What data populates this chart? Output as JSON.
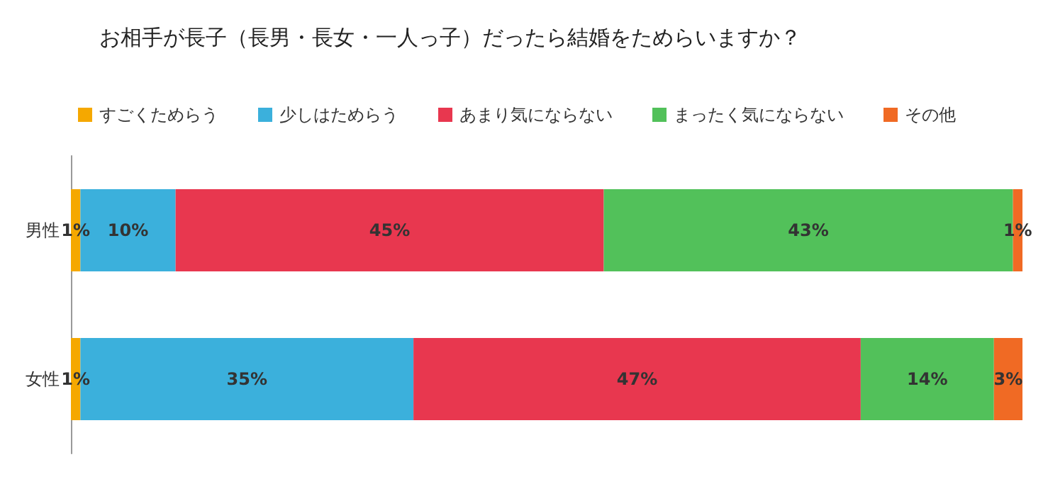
{
  "chart_data": {
    "type": "bar",
    "title": "お相手が長子（長男・長女・一人っ子）だったら結婚をためらいますか？",
    "orientation": "horizontal",
    "stacked": true,
    "categories": [
      "男性",
      "女性"
    ],
    "tick_labels": "y",
    "grid": false,
    "legend": "top",
    "series": [
      {
        "name": "すごくためらう",
        "color": "#f5a800",
        "values": [
          1,
          1
        ],
        "value_labels": [
          "1%",
          "1%"
        ]
      },
      {
        "name": "少しはためらう",
        "color": "#3bb0dc",
        "values": [
          10,
          35
        ],
        "value_labels": [
          "10%",
          "35%"
        ]
      },
      {
        "name": "あまり気にならない",
        "color": "#e8374f",
        "values": [
          45,
          47
        ],
        "value_labels": [
          "45%",
          "47%"
        ]
      },
      {
        "name": "まったく気にならない",
        "color": "#52c15a",
        "values": [
          43,
          14
        ],
        "value_labels": [
          "43%",
          "14%"
        ]
      },
      {
        "name": "その他",
        "color": "#f06a24",
        "values": [
          1,
          3
        ],
        "value_labels": [
          "1%",
          "3%"
        ]
      }
    ]
  }
}
